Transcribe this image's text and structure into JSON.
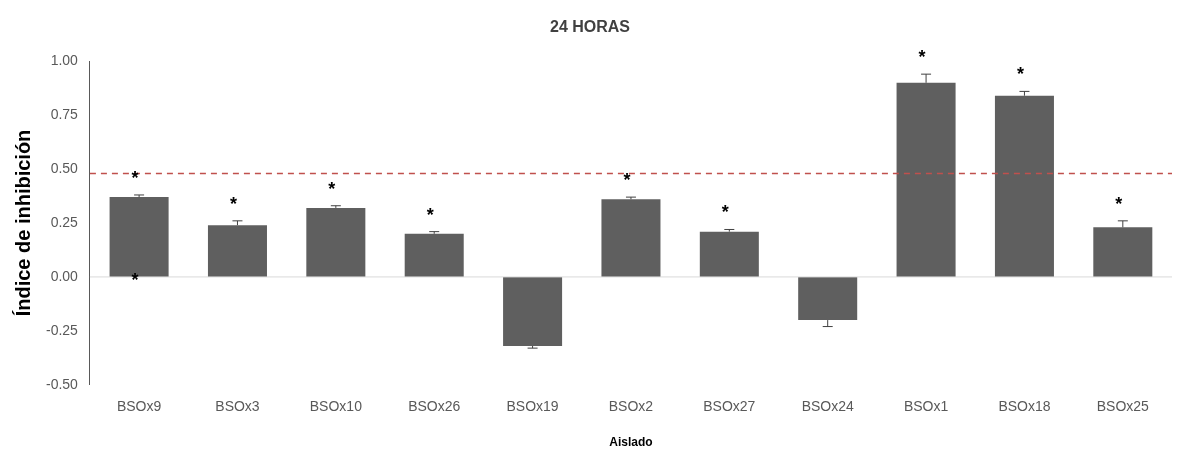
{
  "chart_data": {
    "type": "bar",
    "title": "24 HORAS",
    "xlabel": "Aislado",
    "ylabel": "Índice de inhibición",
    "categories": [
      "BSOx9",
      "BSOx3",
      "BSOx10",
      "BSOx26",
      "BSOx19",
      "BSOx2",
      "BSOx27",
      "BSOx24",
      "BSOx1",
      "BSOx18",
      "BSOx25"
    ],
    "values": [
      0.37,
      0.24,
      0.32,
      0.2,
      -0.32,
      0.36,
      0.21,
      -0.2,
      0.9,
      0.84,
      0.23
    ],
    "errors": [
      0.01,
      0.02,
      0.01,
      0.01,
      0.01,
      0.01,
      0.01,
      0.03,
      0.04,
      0.02,
      0.03
    ],
    "color": "#5f5f5f",
    "ylim": [
      -0.5,
      1.0
    ],
    "yticks": [
      {
        "value": -0.5,
        "label": "-0.50"
      },
      {
        "value": -0.25,
        "label": "-0.25"
      },
      {
        "value": 0,
        "label": "0.00"
      },
      {
        "value": 0.25,
        "label": "0.25"
      },
      {
        "value": 0.5,
        "label": "0.50"
      },
      {
        "value": 0.75,
        "label": "0.75"
      },
      {
        "value": 1.0,
        "label": "1.00"
      }
    ],
    "ref_lines": [
      {
        "axis": "y",
        "value": 0,
        "color": "#d9d9d9",
        "line_style": "solid"
      },
      {
        "axis": "y",
        "value": 0.48,
        "color": "#c0504d",
        "line_style": "dashed"
      }
    ],
    "annotations": [
      {
        "text": "*",
        "x": "BSOx9",
        "y": 0.37
      },
      {
        "text": "*",
        "x": "BSOx9",
        "y": 0.0
      },
      {
        "text": "*",
        "x": "BSOx3",
        "y": 0.24
      },
      {
        "text": "*",
        "x": "BSOx10",
        "y": 0.32
      },
      {
        "text": "*",
        "x": "BSOx26",
        "y": 0.2
      },
      {
        "text": "*",
        "x": "BSOx2",
        "y": 0.36
      },
      {
        "text": "*",
        "x": "BSOx27",
        "y": 0.21
      },
      {
        "text": "*",
        "x": "BSOx1",
        "y": 0.9
      },
      {
        "text": "*",
        "x": "BSOx18",
        "y": 0.84
      },
      {
        "text": "*",
        "x": "BSOx25",
        "y": 0.23
      }
    ],
    "grid": false,
    "legend": false
  }
}
